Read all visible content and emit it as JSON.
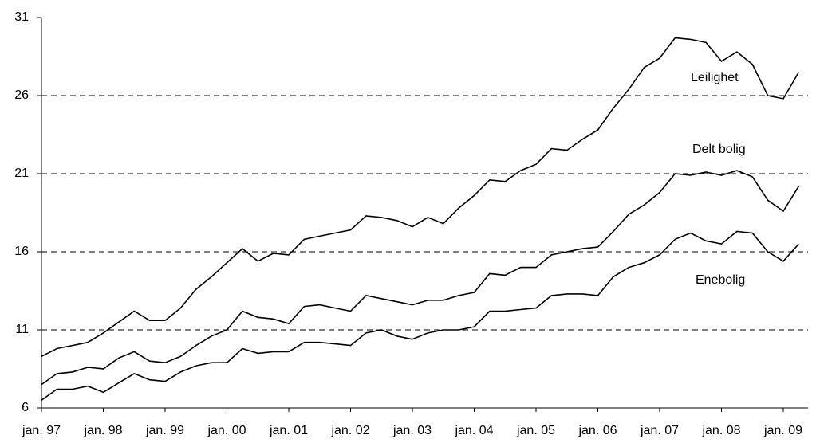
{
  "chart_data": {
    "type": "line",
    "categories": [
      "jan. 97",
      null,
      null,
      null,
      "jan. 98",
      null,
      null,
      null,
      "jan. 99",
      null,
      null,
      null,
      "jan. 00",
      null,
      null,
      null,
      "jan. 01",
      null,
      null,
      null,
      "jan. 02",
      null,
      null,
      null,
      "jan. 03",
      null,
      null,
      null,
      "jan. 04",
      null,
      null,
      null,
      "jan. 05",
      null,
      null,
      null,
      "jan. 06",
      null,
      null,
      null,
      "jan. 07",
      null,
      null,
      null,
      "jan. 08",
      null,
      null,
      null,
      "jan. 09",
      null
    ],
    "series": [
      {
        "name": "Leilighet",
        "color": "#000000",
        "values": [
          9.3,
          9.8,
          10.0,
          10.2,
          10.8,
          11.5,
          12.2,
          11.6,
          11.6,
          12.4,
          13.6,
          14.4,
          15.3,
          16.2,
          15.4,
          15.9,
          15.8,
          16.8,
          17.0,
          17.2,
          17.4,
          18.3,
          18.2,
          18.0,
          17.6,
          18.2,
          17.8,
          18.8,
          19.6,
          20.6,
          20.5,
          21.2,
          21.6,
          22.6,
          22.5,
          23.2,
          23.8,
          25.2,
          26.4,
          27.8,
          28.4,
          29.7,
          29.6,
          29.4,
          28.2,
          28.8,
          28.0,
          26.0,
          25.8,
          27.5
        ]
      },
      {
        "name": "Delt bolig",
        "color": "#000000",
        "values": [
          7.5,
          8.2,
          8.3,
          8.6,
          8.5,
          9.2,
          9.6,
          9.0,
          8.9,
          9.3,
          10.0,
          10.6,
          11.0,
          12.2,
          11.8,
          11.7,
          11.4,
          12.5,
          12.6,
          12.4,
          12.2,
          13.2,
          13.0,
          12.8,
          12.6,
          12.9,
          12.9,
          13.2,
          13.4,
          14.6,
          14.5,
          15.0,
          15.0,
          15.8,
          16.0,
          16.2,
          16.3,
          17.3,
          18.4,
          19.0,
          19.8,
          21.0,
          20.9,
          21.1,
          20.9,
          21.2,
          20.8,
          19.3,
          18.6,
          20.2
        ]
      },
      {
        "name": "Enebolig",
        "color": "#000000",
        "values": [
          6.5,
          7.2,
          7.2,
          7.4,
          7.0,
          7.6,
          8.2,
          7.8,
          7.7,
          8.3,
          8.7,
          8.9,
          8.9,
          9.8,
          9.5,
          9.6,
          9.6,
          10.2,
          10.2,
          10.1,
          10.0,
          10.8,
          11.0,
          10.6,
          10.4,
          10.8,
          11.0,
          11.0,
          11.2,
          12.2,
          12.2,
          12.3,
          12.4,
          13.2,
          13.3,
          13.3,
          13.2,
          14.4,
          15.0,
          15.3,
          15.8,
          16.8,
          17.2,
          16.7,
          16.5,
          17.3,
          17.2,
          16.0,
          15.4,
          16.5
        ]
      }
    ],
    "ylim": [
      6,
      31
    ],
    "yticks": [
      6,
      11,
      16,
      21,
      26,
      31
    ],
    "grid": true
  }
}
